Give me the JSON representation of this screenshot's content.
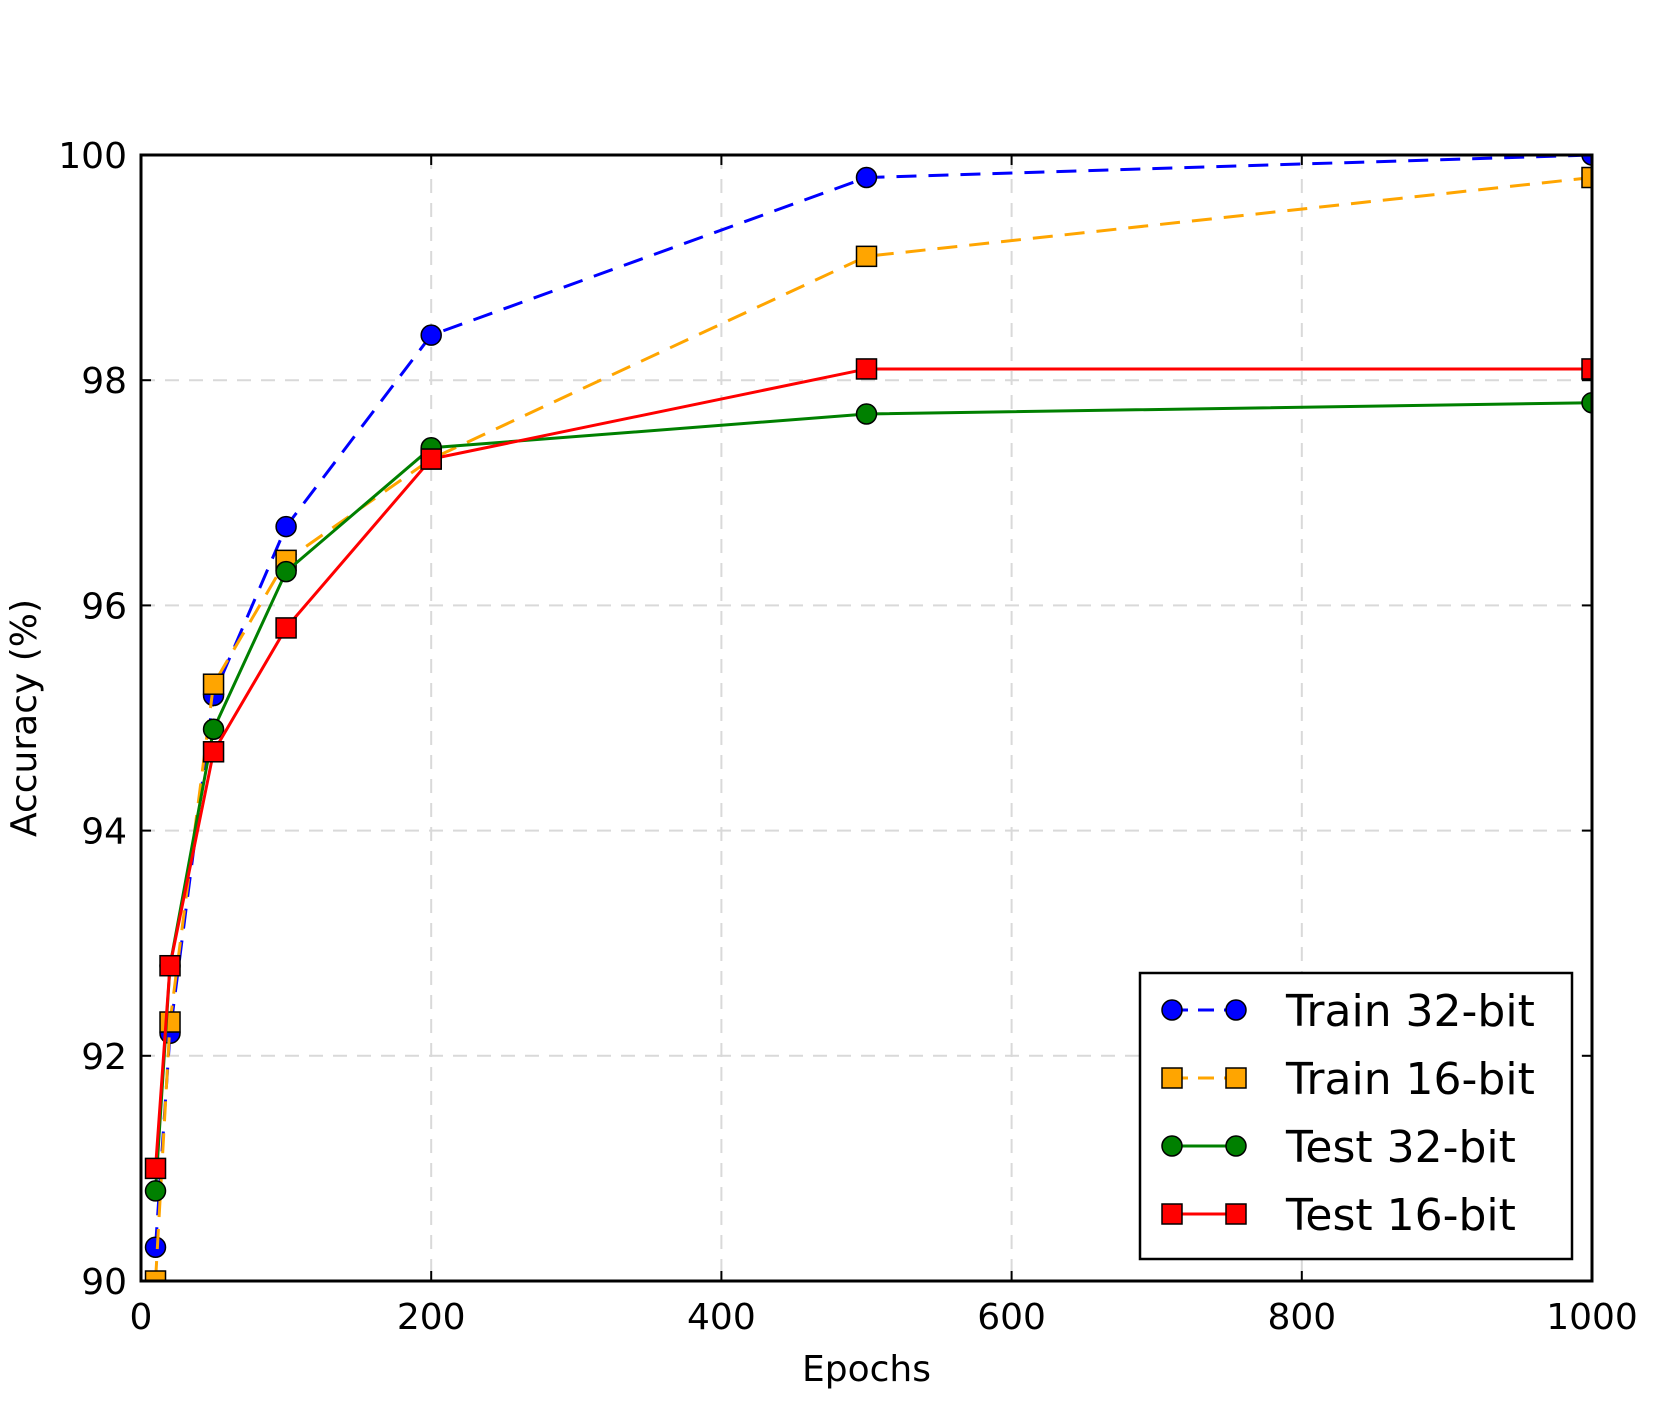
{
  "chart_data": {
    "type": "line",
    "title": "",
    "xlabel": "Epochs",
    "ylabel": "Accuracy (%)",
    "xlim": [
      0,
      1000
    ],
    "ylim": [
      90,
      100
    ],
    "xticks": [
      0,
      200,
      400,
      600,
      800,
      1000
    ],
    "yticks": [
      90,
      92,
      94,
      96,
      98,
      100
    ],
    "xtick_labels": [
      "0",
      "200",
      "400",
      "600",
      "800",
      "1000"
    ],
    "ytick_labels": [
      "90",
      "92",
      "94",
      "96",
      "98",
      "100"
    ],
    "grid": true,
    "legend_position": "bottom-right",
    "x": [
      10,
      20,
      50,
      100,
      200,
      500,
      1000
    ],
    "series": [
      {
        "name": "Train 32-bit",
        "values": [
          90.3,
          92.2,
          95.2,
          96.7,
          98.4,
          99.8,
          100.0
        ],
        "color": "#0000ff",
        "line_style": "dashed",
        "marker": "circle"
      },
      {
        "name": "Train 16-bit",
        "values": [
          90.0,
          92.3,
          95.3,
          96.4,
          97.3,
          99.1,
          99.8
        ],
        "color": "#ffa500",
        "line_style": "dashed",
        "marker": "square"
      },
      {
        "name": "Test 32-bit",
        "values": [
          90.8,
          92.8,
          94.9,
          96.3,
          97.4,
          97.7,
          97.8
        ],
        "color": "#008000",
        "line_style": "solid",
        "marker": "circle"
      },
      {
        "name": "Test 16-bit",
        "values": [
          91.0,
          92.8,
          94.7,
          95.8,
          97.3,
          98.1,
          98.1
        ],
        "color": "#ff0000",
        "line_style": "solid",
        "marker": "square"
      }
    ]
  }
}
